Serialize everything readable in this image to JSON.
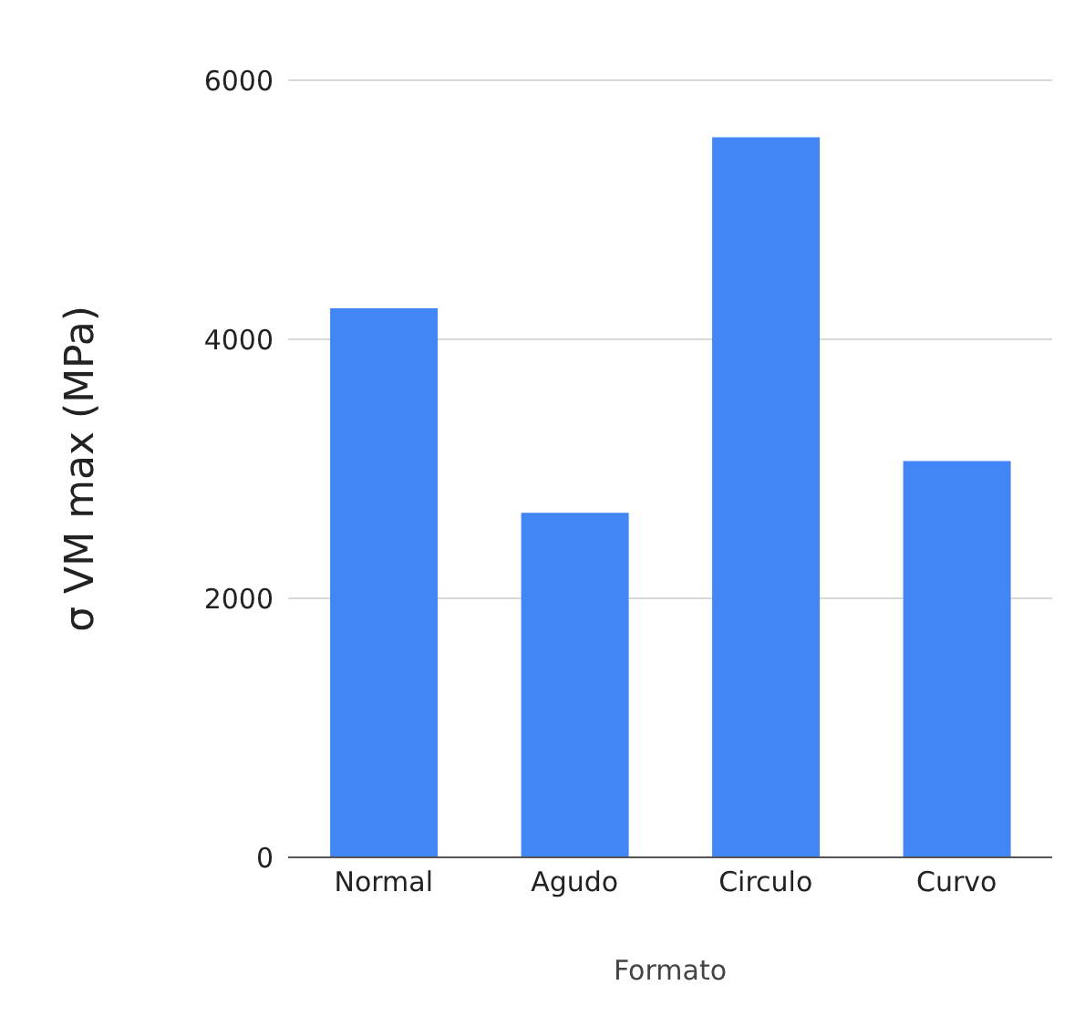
{
  "chart_data": {
    "type": "bar",
    "xlabel": "Formato",
    "ylabel": "σ VM max (MPa)",
    "categories": [
      "Normal",
      "Agudo",
      "Circulo",
      "Curvo"
    ],
    "values": [
      4240,
      2660,
      5560,
      3060
    ],
    "color": "#4285f4",
    "ylim": [
      0,
      6000
    ],
    "yticks": [
      0,
      2000,
      4000,
      6000
    ],
    "grid": "y"
  }
}
